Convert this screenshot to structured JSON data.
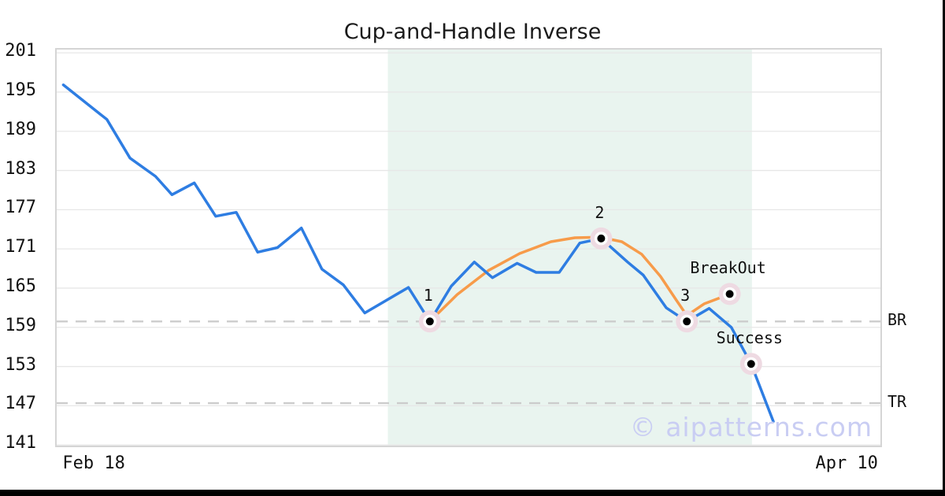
{
  "watermark": "© aipatterns.com",
  "chart_data": {
    "type": "line",
    "title": "Cup-and-Handle Inverse",
    "x_axis": {
      "ticks": [
        {
          "label": "Feb 18",
          "pos_pct": 4.7
        },
        {
          "label": "Apr 10",
          "pos_pct": 96.1
        }
      ]
    },
    "y_axis": {
      "ticks": [
        201,
        195,
        189,
        183,
        177,
        171,
        165,
        159,
        153,
        147,
        141
      ],
      "range": [
        140.9,
        201.5
      ]
    },
    "grid": "horizontal",
    "legend": "none",
    "shaded_region": {
      "from_pct": 40.2,
      "to_pct": 84.4,
      "color": "#e9f4ef"
    },
    "hlines": [
      {
        "label": "BR",
        "value": 159.9
      },
      {
        "label": "TR",
        "value": 147.4
      }
    ],
    "series": [
      {
        "name": "pattern-overlay",
        "color": "#f79b4a",
        "points": [
          {
            "x": 45.3,
            "y": 159.9
          },
          {
            "x": 48.6,
            "y": 164.0
          },
          {
            "x": 52.4,
            "y": 167.7
          },
          {
            "x": 56.2,
            "y": 170.3
          },
          {
            "x": 60.0,
            "y": 172.1
          },
          {
            "x": 62.9,
            "y": 172.7
          },
          {
            "x": 65.9,
            "y": 172.8
          },
          {
            "x": 68.6,
            "y": 172.1
          },
          {
            "x": 71.0,
            "y": 170.2
          },
          {
            "x": 73.3,
            "y": 166.8
          },
          {
            "x": 75.2,
            "y": 163.2
          },
          {
            "x": 76.5,
            "y": 160.8
          },
          {
            "x": 78.6,
            "y": 162.6
          },
          {
            "x": 80.5,
            "y": 163.5
          },
          {
            "x": 81.7,
            "y": 164.1
          }
        ]
      },
      {
        "name": "price",
        "color": "#2e7de2",
        "points": [
          {
            "x": 0.8,
            "y": 196.1
          },
          {
            "x": 6.1,
            "y": 190.8
          },
          {
            "x": 8.9,
            "y": 184.9
          },
          {
            "x": 12.0,
            "y": 182.1
          },
          {
            "x": 14.0,
            "y": 179.3
          },
          {
            "x": 16.7,
            "y": 181.1
          },
          {
            "x": 19.3,
            "y": 176.0
          },
          {
            "x": 21.8,
            "y": 176.6
          },
          {
            "x": 24.4,
            "y": 170.5
          },
          {
            "x": 26.8,
            "y": 171.2
          },
          {
            "x": 29.7,
            "y": 174.2
          },
          {
            "x": 32.2,
            "y": 167.9
          },
          {
            "x": 34.8,
            "y": 165.5
          },
          {
            "x": 37.4,
            "y": 161.2
          },
          {
            "x": 42.7,
            "y": 165.1
          },
          {
            "x": 45.3,
            "y": 159.9
          },
          {
            "x": 47.9,
            "y": 165.3
          },
          {
            "x": 50.7,
            "y": 169.0
          },
          {
            "x": 52.9,
            "y": 166.6
          },
          {
            "x": 55.9,
            "y": 168.8
          },
          {
            "x": 58.2,
            "y": 167.4
          },
          {
            "x": 61.0,
            "y": 167.4
          },
          {
            "x": 63.5,
            "y": 171.9
          },
          {
            "x": 66.1,
            "y": 172.6
          },
          {
            "x": 69.3,
            "y": 169.0
          },
          {
            "x": 71.2,
            "y": 167.0
          },
          {
            "x": 74.0,
            "y": 162.0
          },
          {
            "x": 76.5,
            "y": 159.9
          },
          {
            "x": 79.2,
            "y": 161.9
          },
          {
            "x": 81.9,
            "y": 159.0
          },
          {
            "x": 84.3,
            "y": 153.4
          },
          {
            "x": 87.0,
            "y": 144.6
          }
        ]
      }
    ],
    "markers": [
      {
        "label": "1",
        "x": 45.3,
        "y": 159.9
      },
      {
        "label": "2",
        "x": 66.1,
        "y": 172.6
      },
      {
        "label": "3",
        "x": 76.5,
        "y": 159.9
      },
      {
        "label": "BreakOut",
        "x": 81.7,
        "y": 164.1
      },
      {
        "label": "Success",
        "x": 84.3,
        "y": 153.4
      }
    ],
    "marker_style": {
      "halo_color": "#eedae2",
      "dot_color": "#000000",
      "ring_color": "#ffffff"
    }
  },
  "colors": {
    "grid": "#e7e7e7",
    "dashed_line": "#cccccc",
    "plot_border": "#d5d5d5",
    "text": "#111111",
    "watermark": "#c9cdf3",
    "frame": "#000000"
  }
}
